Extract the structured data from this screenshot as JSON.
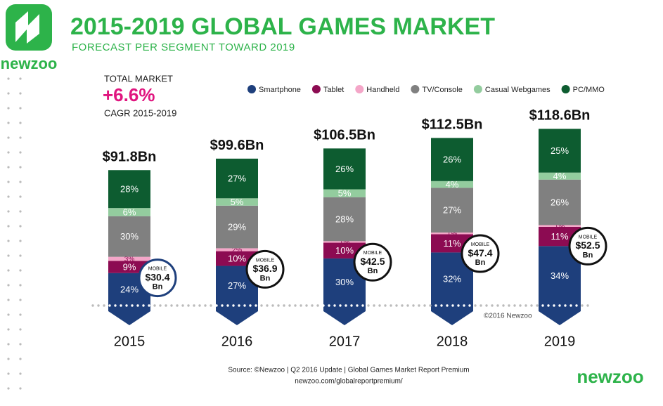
{
  "chart_data": {
    "type": "stacked_bar",
    "title": "2015-2019 GLOBAL GAMES MARKET",
    "subtitle": "FORECAST PER SEGMENT TOWARD 2019",
    "brand": "newzoo",
    "callout": {
      "label": "TOTAL MARKET",
      "value": "+6.6%",
      "note": "CAGR 2015-2019"
    },
    "categories": [
      "2015",
      "2016",
      "2017",
      "2018",
      "2019"
    ],
    "totals": {
      "values": [
        91.8,
        99.6,
        106.5,
        112.5,
        118.6
      ],
      "value_labels": [
        "$91.8Bn",
        "$99.6Bn",
        "$106.5Bn",
        "$112.5Bn",
        "$118.6Bn"
      ]
    },
    "mobile": {
      "label": "MOBILE",
      "unit": "Bn",
      "values": [
        30.4,
        36.9,
        42.5,
        47.4,
        52.5
      ],
      "value_labels": [
        "$30.4",
        "$36.9",
        "$42.5",
        "$47.4",
        "$52.5"
      ]
    },
    "series": [
      {
        "name": "Smartphone",
        "color": "#1e3f7c",
        "values": [
          24,
          27,
          30,
          32,
          34
        ],
        "value_labels": [
          "24%",
          "27%",
          "30%",
          "32%",
          "34%"
        ]
      },
      {
        "name": "Tablet",
        "color": "#8c0b52",
        "values": [
          9,
          10,
          10,
          11,
          11
        ],
        "value_labels": [
          "9%",
          "10%",
          "10%",
          "11%",
          "11%"
        ]
      },
      {
        "name": "Handheld",
        "color": "#f4a6c8",
        "values": [
          3,
          2,
          1,
          1,
          1
        ],
        "value_labels": [
          "3%",
          "2%",
          "1%",
          "1%",
          "1%"
        ]
      },
      {
        "name": "TV/Console",
        "color": "#808080",
        "values": [
          30,
          29,
          28,
          27,
          26
        ],
        "value_labels": [
          "30%",
          "29%",
          "28%",
          "27%",
          "26%"
        ]
      },
      {
        "name": "Casual Webgames",
        "color": "#93cc9e",
        "values": [
          6,
          5,
          5,
          4,
          4
        ],
        "value_labels": [
          "6%",
          "5%",
          "5%",
          "4%",
          "4%"
        ]
      },
      {
        "name": "PC/MMO",
        "color": "#0d5c30",
        "values": [
          28,
          27,
          26,
          26,
          25
        ],
        "value_labels": [
          "28%",
          "27%",
          "26%",
          "26%",
          "25%"
        ]
      }
    ],
    "copyright": "©2016 Newzoo",
    "source": "Source: ©Newzoo | Q2 2016 Update | Global Games Market Report Premium",
    "url": "newzoo.com/globalreportpremium/"
  }
}
